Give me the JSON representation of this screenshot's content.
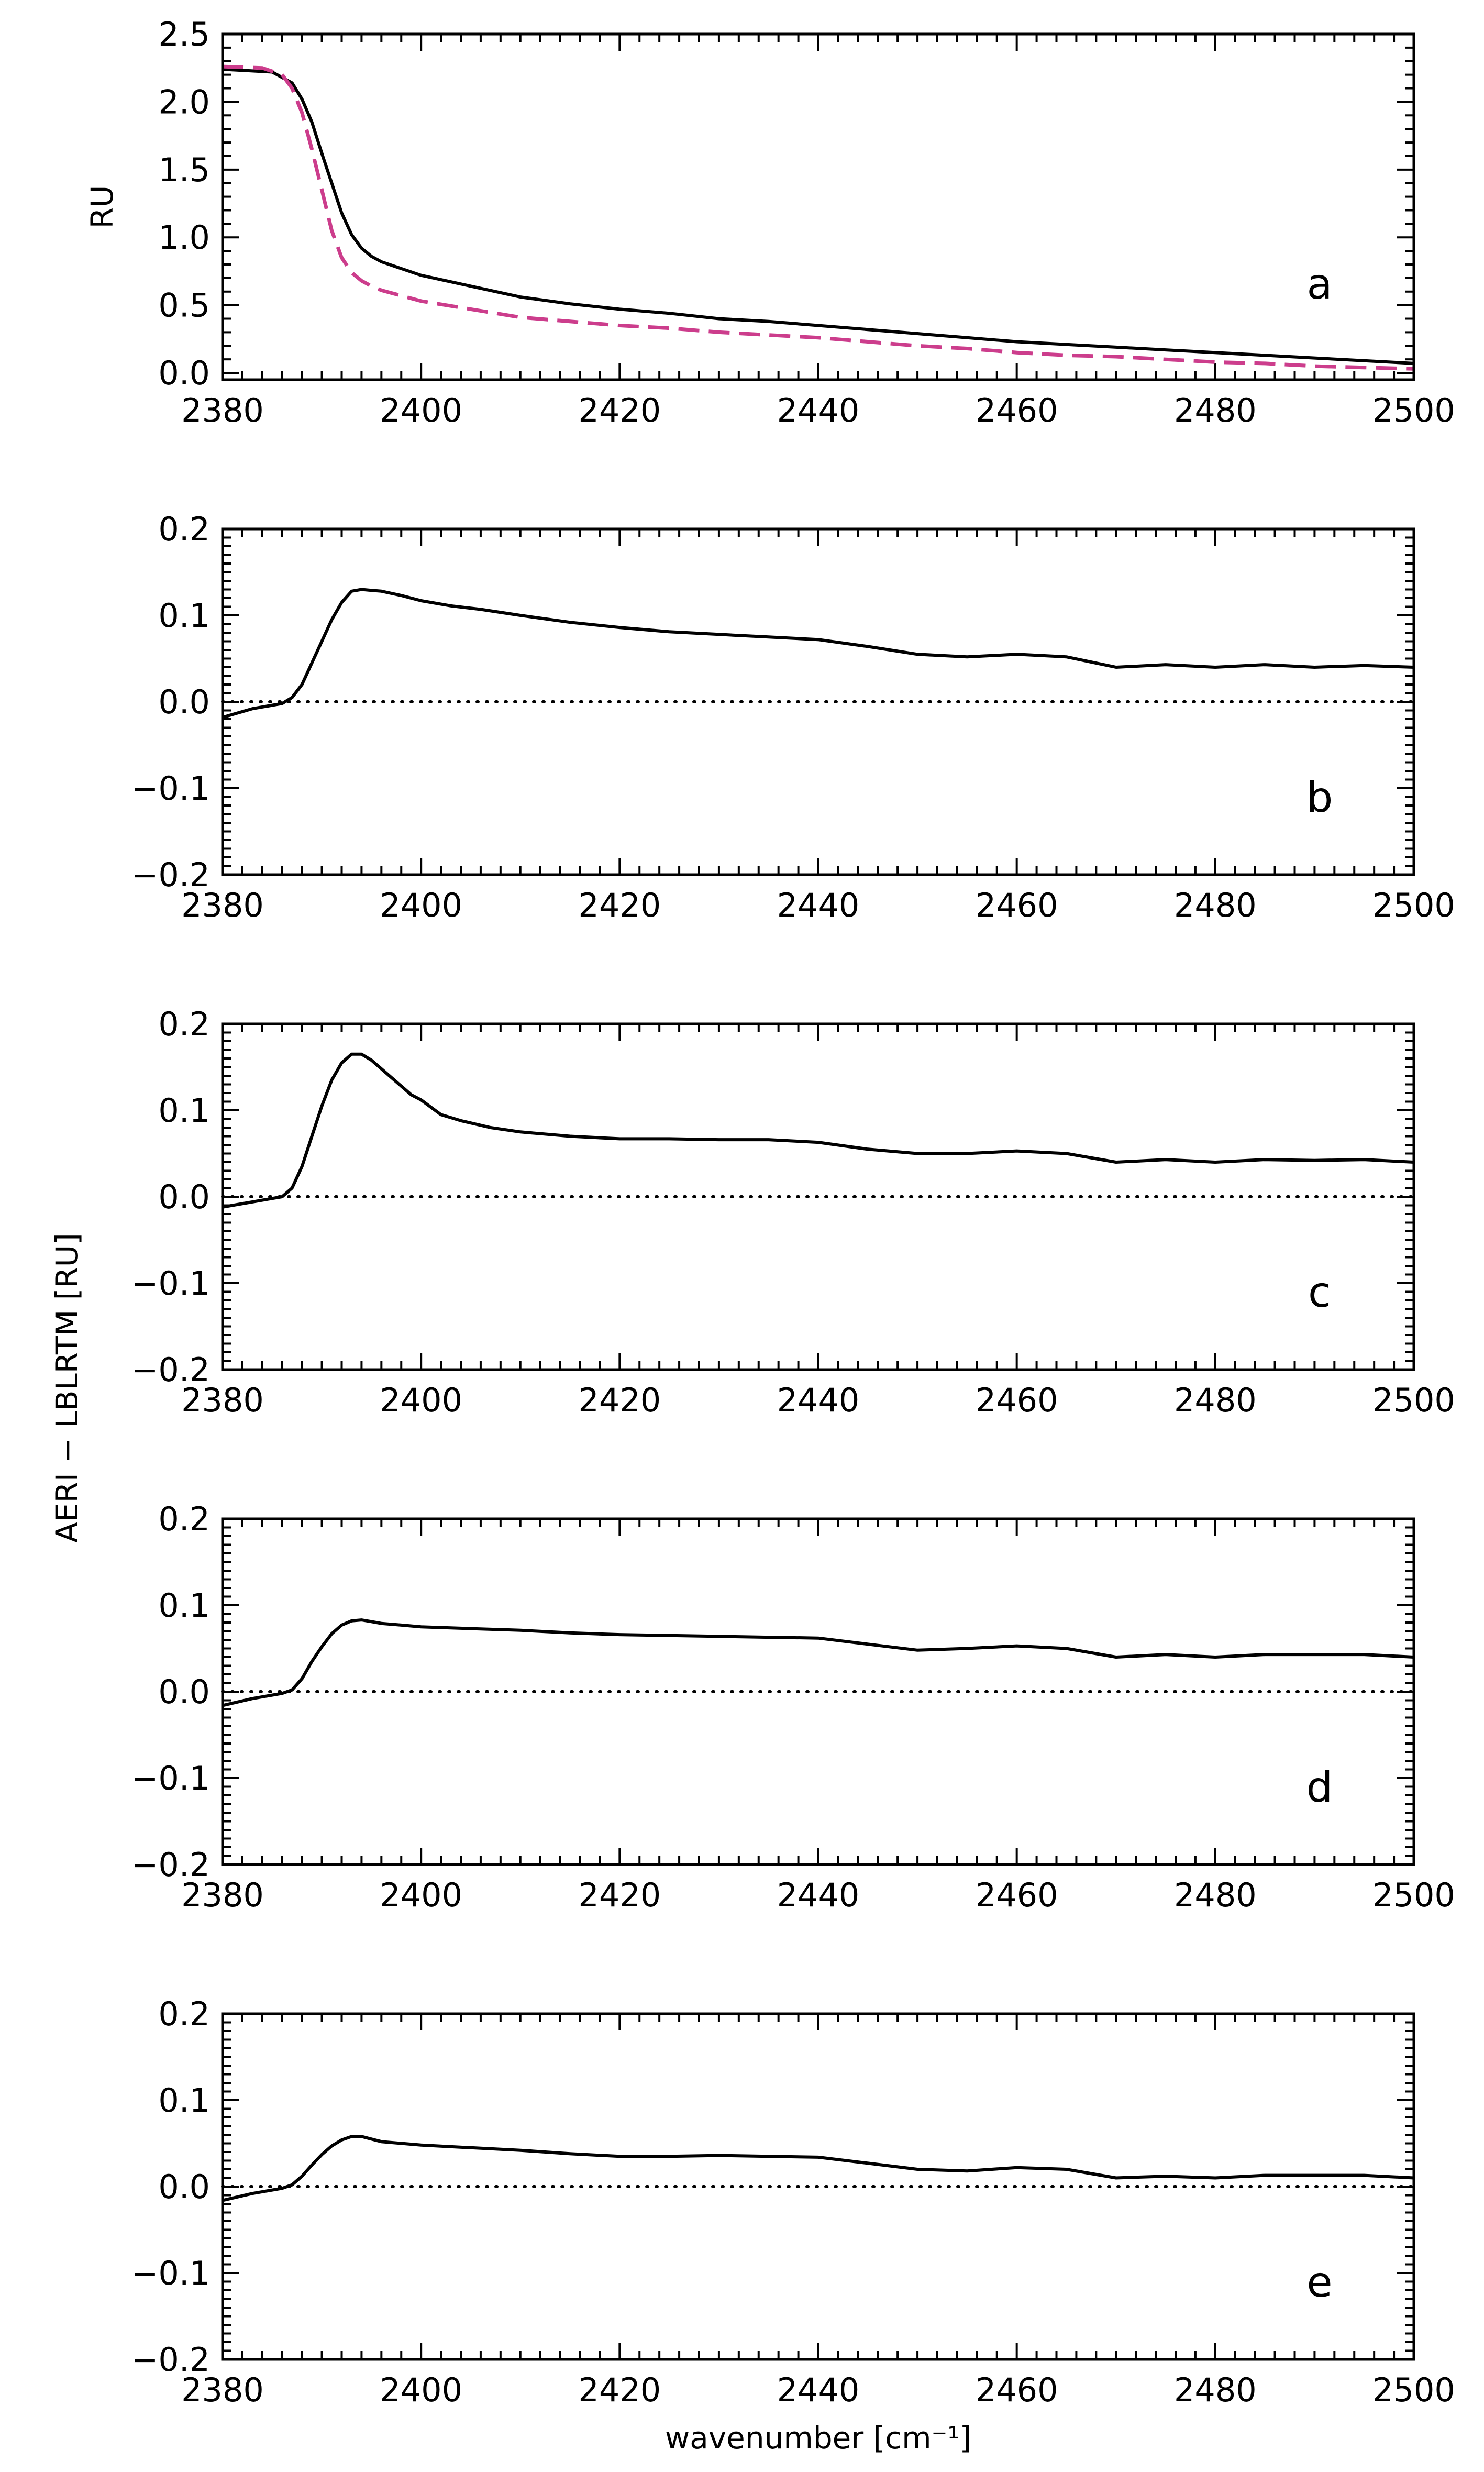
{
  "chart_data": [
    {
      "panel": "a",
      "type": "line",
      "ylabel": "RU",
      "xlim": [
        2380,
        2500
      ],
      "ylim": [
        -0.05,
        2.5
      ],
      "xticks": [
        "2380",
        "2400",
        "2420",
        "2440",
        "2460",
        "2480",
        "2500"
      ],
      "yticks": [
        "0.0",
        "0.5",
        "1.0",
        "1.5",
        "2.0",
        "2.5"
      ],
      "ytick_values": [
        0.0,
        0.5,
        1.0,
        1.5,
        2.0,
        2.5
      ],
      "series": [
        {
          "color": "#000000",
          "dash": "solid",
          "x": [
            2380,
            2385,
            2387,
            2388,
            2389,
            2390,
            2391,
            2392,
            2393,
            2394,
            2395,
            2396,
            2398,
            2400,
            2405,
            2410,
            2415,
            2420,
            2425,
            2430,
            2435,
            2440,
            2445,
            2450,
            2455,
            2460,
            2465,
            2470,
            2475,
            2480,
            2485,
            2490,
            2495,
            2500
          ],
          "y": [
            2.24,
            2.22,
            2.14,
            2.02,
            1.85,
            1.62,
            1.4,
            1.18,
            1.02,
            0.92,
            0.86,
            0.82,
            0.77,
            0.72,
            0.64,
            0.56,
            0.51,
            0.47,
            0.44,
            0.4,
            0.38,
            0.35,
            0.32,
            0.29,
            0.26,
            0.23,
            0.21,
            0.19,
            0.17,
            0.15,
            0.13,
            0.11,
            0.09,
            0.07
          ]
        },
        {
          "color": "#cc3d8c",
          "dash": "dashed",
          "x": [
            2380,
            2384,
            2386,
            2387,
            2388,
            2389,
            2390,
            2391,
            2392,
            2393,
            2394,
            2395,
            2396,
            2398,
            2400,
            2405,
            2410,
            2415,
            2420,
            2425,
            2430,
            2435,
            2440,
            2445,
            2450,
            2455,
            2460,
            2465,
            2470,
            2475,
            2480,
            2485,
            2490,
            2495,
            2500
          ],
          "y": [
            2.26,
            2.25,
            2.2,
            2.1,
            1.92,
            1.65,
            1.35,
            1.05,
            0.85,
            0.74,
            0.68,
            0.64,
            0.61,
            0.57,
            0.53,
            0.47,
            0.41,
            0.38,
            0.35,
            0.33,
            0.3,
            0.28,
            0.26,
            0.23,
            0.2,
            0.18,
            0.15,
            0.13,
            0.12,
            0.1,
            0.08,
            0.07,
            0.05,
            0.04,
            0.03
          ]
        }
      ]
    },
    {
      "panel": "b",
      "type": "line",
      "xlim": [
        2380,
        2500
      ],
      "ylim": [
        -0.2,
        0.2
      ],
      "xticks": [
        "2380",
        "2400",
        "2420",
        "2440",
        "2460",
        "2480",
        "2500"
      ],
      "yticks": [
        "0.2",
        "0.1",
        "0.0",
        "−0.1",
        "−0.2"
      ],
      "ytick_values": [
        0.2,
        0.1,
        0.0,
        -0.1,
        -0.2
      ],
      "zero_line": true,
      "series": [
        {
          "color": "#000000",
          "dash": "solid",
          "x": [
            2380,
            2383,
            2386,
            2387,
            2388,
            2389,
            2390,
            2391,
            2392,
            2393,
            2394,
            2395,
            2396,
            2398,
            2400,
            2403,
            2406,
            2410,
            2415,
            2420,
            2425,
            2430,
            2435,
            2440,
            2445,
            2450,
            2455,
            2460,
            2465,
            2470,
            2475,
            2480,
            2485,
            2490,
            2495,
            2500
          ],
          "y": [
            -0.018,
            -0.008,
            -0.002,
            0.005,
            0.02,
            0.045,
            0.07,
            0.095,
            0.115,
            0.128,
            0.13,
            0.129,
            0.128,
            0.123,
            0.117,
            0.111,
            0.107,
            0.1,
            0.092,
            0.086,
            0.081,
            0.078,
            0.075,
            0.072,
            0.064,
            0.055,
            0.052,
            0.055,
            0.052,
            0.04,
            0.043,
            0.04,
            0.043,
            0.04,
            0.042,
            0.04
          ]
        }
      ]
    },
    {
      "panel": "c",
      "type": "line",
      "xlim": [
        2380,
        2500
      ],
      "ylim": [
        -0.2,
        0.2
      ],
      "xticks": [
        "2380",
        "2400",
        "2420",
        "2440",
        "2460",
        "2480",
        "2500"
      ],
      "yticks": [
        "0.2",
        "0.1",
        "0.0",
        "−0.1",
        "−0.2"
      ],
      "ytick_values": [
        0.2,
        0.1,
        0.0,
        -0.1,
        -0.2
      ],
      "zero_line": true,
      "series": [
        {
          "color": "#000000",
          "dash": "solid",
          "x": [
            2380,
            2383,
            2386,
            2387,
            2388,
            2389,
            2390,
            2391,
            2392,
            2393,
            2394,
            2395,
            2396,
            2397,
            2398,
            2399,
            2400,
            2402,
            2404,
            2407,
            2410,
            2415,
            2420,
            2425,
            2430,
            2435,
            2440,
            2445,
            2450,
            2455,
            2460,
            2465,
            2470,
            2475,
            2480,
            2485,
            2490,
            2495,
            2500
          ],
          "y": [
            -0.012,
            -0.006,
            0.0,
            0.01,
            0.035,
            0.07,
            0.105,
            0.135,
            0.155,
            0.165,
            0.165,
            0.158,
            0.148,
            0.138,
            0.128,
            0.118,
            0.112,
            0.095,
            0.088,
            0.08,
            0.075,
            0.07,
            0.067,
            0.067,
            0.066,
            0.066,
            0.063,
            0.055,
            0.05,
            0.05,
            0.053,
            0.05,
            0.04,
            0.043,
            0.04,
            0.043,
            0.042,
            0.043,
            0.04
          ]
        }
      ]
    },
    {
      "panel": "d",
      "type": "line",
      "xlim": [
        2380,
        2500
      ],
      "ylim": [
        -0.2,
        0.2
      ],
      "xticks": [
        "2380",
        "2400",
        "2420",
        "2440",
        "2460",
        "2480",
        "2500"
      ],
      "yticks": [
        "0.2",
        "0.1",
        "0.0",
        "−0.1",
        "−0.2"
      ],
      "ytick_values": [
        0.2,
        0.1,
        0.0,
        -0.1,
        -0.2
      ],
      "zero_line": true,
      "series": [
        {
          "color": "#000000",
          "dash": "solid",
          "x": [
            2380,
            2383,
            2386,
            2387,
            2388,
            2389,
            2390,
            2391,
            2392,
            2393,
            2394,
            2395,
            2396,
            2398,
            2400,
            2405,
            2410,
            2415,
            2420,
            2425,
            2430,
            2435,
            2440,
            2445,
            2450,
            2455,
            2460,
            2465,
            2470,
            2475,
            2480,
            2485,
            2490,
            2495,
            2500
          ],
          "y": [
            -0.016,
            -0.008,
            -0.002,
            0.002,
            0.015,
            0.035,
            0.052,
            0.067,
            0.077,
            0.082,
            0.083,
            0.081,
            0.079,
            0.077,
            0.075,
            0.073,
            0.071,
            0.068,
            0.066,
            0.065,
            0.064,
            0.063,
            0.062,
            0.055,
            0.048,
            0.05,
            0.053,
            0.05,
            0.04,
            0.043,
            0.04,
            0.043,
            0.043,
            0.043,
            0.04
          ]
        }
      ]
    },
    {
      "panel": "e",
      "type": "line",
      "xlim": [
        2380,
        2500
      ],
      "ylim": [
        -0.2,
        0.2
      ],
      "xticks": [
        "2380",
        "2400",
        "2420",
        "2440",
        "2460",
        "2480",
        "2500"
      ],
      "yticks": [
        "0.2",
        "0.1",
        "0.0",
        "−0.1",
        "−0.2"
      ],
      "ytick_values": [
        0.2,
        0.1,
        0.0,
        -0.1,
        -0.2
      ],
      "zero_line": true,
      "xlabel": "wavenumber [cm⁻¹]",
      "series": [
        {
          "color": "#000000",
          "dash": "solid",
          "x": [
            2380,
            2383,
            2386,
            2387,
            2388,
            2389,
            2390,
            2391,
            2392,
            2393,
            2394,
            2395,
            2396,
            2398,
            2400,
            2405,
            2410,
            2415,
            2420,
            2425,
            2430,
            2435,
            2440,
            2445,
            2450,
            2455,
            2460,
            2465,
            2470,
            2475,
            2480,
            2485,
            2490,
            2495,
            2500
          ],
          "y": [
            -0.016,
            -0.008,
            -0.002,
            0.002,
            0.012,
            0.025,
            0.037,
            0.047,
            0.054,
            0.058,
            0.058,
            0.055,
            0.052,
            0.05,
            0.048,
            0.045,
            0.042,
            0.038,
            0.035,
            0.035,
            0.036,
            0.035,
            0.034,
            0.027,
            0.02,
            0.018,
            0.022,
            0.02,
            0.01,
            0.012,
            0.01,
            0.013,
            0.013,
            0.013,
            0.01
          ]
        }
      ]
    }
  ],
  "shared_ylabel": "AERI − LBLRTM [RU]"
}
